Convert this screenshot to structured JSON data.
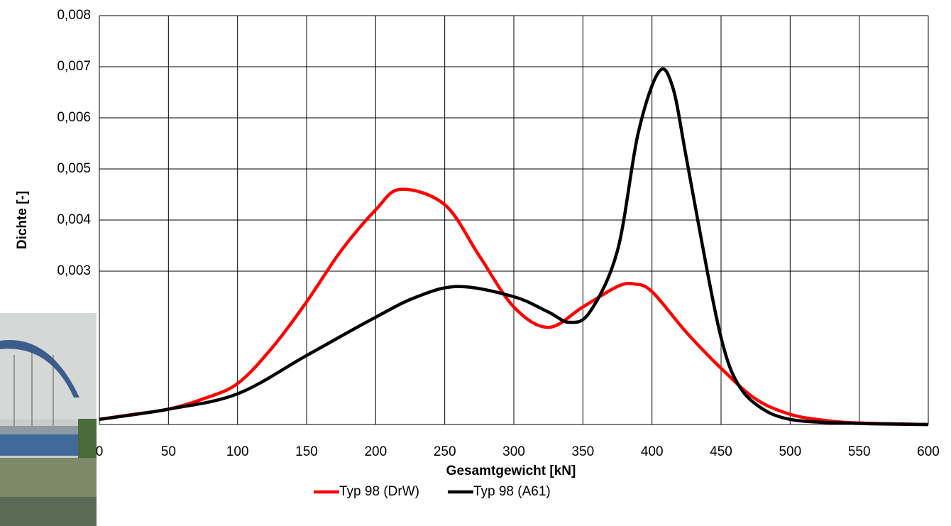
{
  "chart_data": {
    "type": "line",
    "xlabel": "Gesamtgewicht [kN]",
    "ylabel": "Dichte [-]",
    "xlim": [
      0,
      600
    ],
    "ylim": [
      0,
      0.008
    ],
    "xticks": [
      0,
      50,
      100,
      150,
      200,
      250,
      300,
      350,
      400,
      450,
      500,
      550,
      600
    ],
    "yticks": [
      {
        "value": 0.003,
        "label": "0,003"
      },
      {
        "value": 0.004,
        "label": "0,004"
      },
      {
        "value": 0.005,
        "label": "0,005"
      },
      {
        "value": 0.006,
        "label": "0,006"
      },
      {
        "value": 0.007,
        "label": "0,007"
      },
      {
        "value": 0.008,
        "label": "0,008"
      }
    ],
    "grid": true,
    "legend": "bottom",
    "series": [
      {
        "name": "Typ 98 (DrW)",
        "color": "#ff0000",
        "x": [
          0,
          25,
          50,
          75,
          100,
          125,
          150,
          175,
          200,
          218,
          250,
          275,
          300,
          325,
          350,
          375,
          387,
          400,
          425,
          450,
          475,
          500,
          525,
          550,
          600
        ],
        "values": [
          0.0001,
          0.0002,
          0.0003,
          0.0005,
          0.0008,
          0.0015,
          0.0024,
          0.0034,
          0.0042,
          0.0046,
          0.0043,
          0.0033,
          0.0023,
          0.0019,
          0.0023,
          0.0027,
          0.00275,
          0.0026,
          0.0018,
          0.0011,
          0.0005,
          0.0002,
          8e-05,
          3e-05,
          0
        ]
      },
      {
        "name": "Typ 98 (A61)",
        "color": "#000000",
        "x": [
          0,
          50,
          100,
          150,
          200,
          230,
          260,
          300,
          325,
          340,
          355,
          375,
          390,
          405,
          415,
          425,
          440,
          450,
          460,
          475,
          500,
          550,
          600
        ],
        "values": [
          0.0001,
          0.0003,
          0.0006,
          0.00135,
          0.0021,
          0.0025,
          0.0027,
          0.0025,
          0.0022,
          0.002,
          0.0022,
          0.0034,
          0.0057,
          0.0069,
          0.0066,
          0.0052,
          0.003,
          0.0017,
          0.0009,
          0.0004,
          0.0001,
          2e-05,
          0
        ]
      }
    ]
  }
}
